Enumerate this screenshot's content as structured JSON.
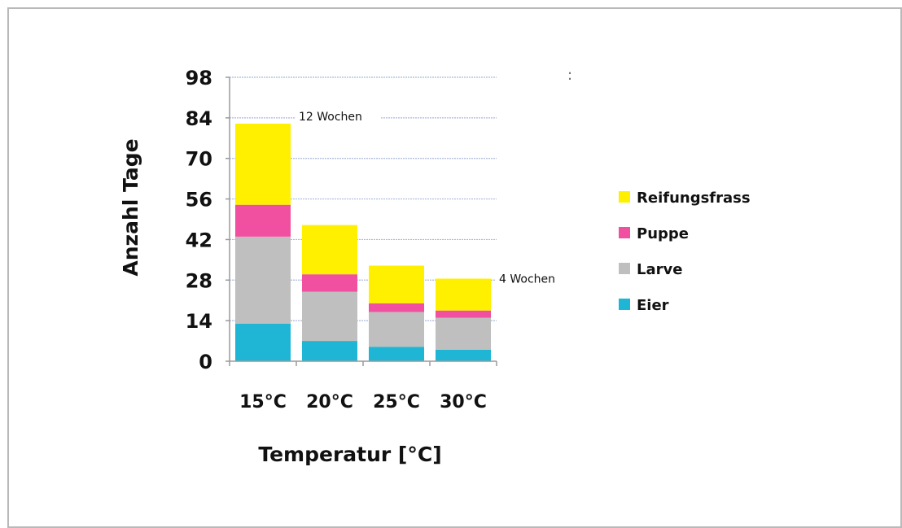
{
  "chart_data": {
    "type": "bar",
    "stacked": true,
    "categories": [
      "15°C",
      "20°C",
      "25°C",
      "30°C"
    ],
    "series": [
      {
        "name": "Eier",
        "color": "#1fb6d6",
        "values": [
          13,
          7,
          5,
          4
        ]
      },
      {
        "name": "Larve",
        "color": "#bfbfbf",
        "values": [
          30,
          17,
          12,
          11
        ]
      },
      {
        "name": "Puppe",
        "color": "#f0509f",
        "values": [
          11,
          6,
          3,
          2.5
        ]
      },
      {
        "name": "Reifungsfrass",
        "color": "#fff000",
        "values": [
          28,
          17,
          13,
          11
        ]
      }
    ],
    "legend_order": [
      "Reifungsfrass",
      "Puppe",
      "Larve",
      "Eier"
    ],
    "xlabel": "Temperatur [°C]",
    "ylabel": "Anzahl Tage",
    "ylim": [
      0,
      98
    ],
    "yticks": [
      0,
      14,
      28,
      42,
      56,
      70,
      84,
      98
    ],
    "grid": true,
    "grid_color": "#a9b9d9",
    "legend_position": "right",
    "annotations": [
      {
        "text": "12 Wochen",
        "y": 84,
        "category": "15°C"
      },
      {
        "text": "4 Wochen",
        "y": 28,
        "category": "30°C"
      }
    ]
  },
  "stray_mark": ":"
}
